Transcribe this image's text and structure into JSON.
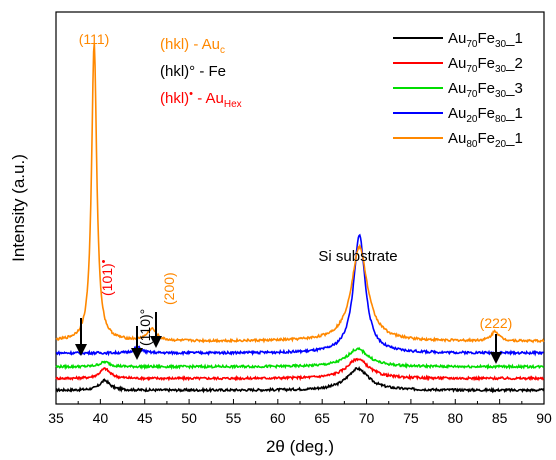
{
  "chart_data": {
    "type": "line",
    "xlabel": "2θ (deg.)",
    "ylabel": "Intensity (a.u.)",
    "xlim": [
      35,
      90
    ],
    "xticks": [
      35,
      40,
      45,
      50,
      55,
      60,
      65,
      70,
      75,
      80,
      85,
      90
    ],
    "y_tick_labels": "none",
    "ylim": [
      0,
      100
    ],
    "legend_position": "top-right",
    "series": [
      {
        "name_main": "Au",
        "name_sub1": "70",
        "name_mid": "Fe",
        "name_sub2": "30",
        "name_tail": "_1",
        "color": "#000000",
        "baseline": 3.5,
        "peaks": [
          {
            "x": 40.5,
            "h": 2.5,
            "w": 0.7
          },
          {
            "x": 69.0,
            "h": 5.5,
            "w": 1.5
          }
        ]
      },
      {
        "name_main": "Au",
        "name_sub1": "70",
        "name_mid": "Fe",
        "name_sub2": "30",
        "name_tail": "_2",
        "color": "#ff0000",
        "baseline": 6.5,
        "peaks": [
          {
            "x": 40.5,
            "h": 2.5,
            "w": 0.7
          },
          {
            "x": 69.0,
            "h": 5.0,
            "w": 1.5
          }
        ]
      },
      {
        "name_main": "Au",
        "name_sub1": "70",
        "name_mid": "Fe",
        "name_sub2": "30",
        "name_tail": "_3",
        "color": "#00dd00",
        "baseline": 9.5,
        "peaks": [
          {
            "x": 40.5,
            "h": 1.2,
            "w": 0.7
          },
          {
            "x": 69.0,
            "h": 4.5,
            "w": 1.5
          }
        ]
      },
      {
        "name_main": "Au",
        "name_sub1": "20",
        "name_mid": "Fe",
        "name_sub2": "80",
        "name_tail": "_1",
        "color": "#0000ff",
        "baseline": 13.0,
        "peaks": [
          {
            "x": 44.2,
            "h": 1.5,
            "w": 0.5
          },
          {
            "x": 69.2,
            "h": 30.0,
            "w": 0.8
          }
        ]
      },
      {
        "name_main": "Au",
        "name_sub1": "80",
        "name_mid": "Fe",
        "name_sub2": "20",
        "name_tail": "_1",
        "color": "#ff8800",
        "baseline": 16.0,
        "peaks": [
          {
            "x": 39.3,
            "h": 76.0,
            "w": 0.35
          },
          {
            "x": 45.8,
            "h": 3.0,
            "w": 0.6
          },
          {
            "x": 69.2,
            "h": 24.0,
            "w": 1.1
          },
          {
            "x": 84.5,
            "h": 2.5,
            "w": 0.5
          }
        ]
      }
    ],
    "annotations": {
      "key_au": {
        "text": "(hkl) - Au",
        "sub": "c",
        "color": "#ff8800"
      },
      "key_fe": {
        "text": "(hkl)° - Fe",
        "color": "#000000"
      },
      "key_hex": {
        "text_pre": "(hkl)",
        "dot": "•",
        "text_post": " - Au",
        "sub": "Hex",
        "color": "#ff0000"
      },
      "peak_111": {
        "text": "(111)",
        "x": 39.3,
        "color": "#ff8800"
      },
      "peak_101": {
        "text_pre": "(101)",
        "dot": "•",
        "x": 40.5,
        "color": "#ff0000"
      },
      "peak_110": {
        "text": "(110)°",
        "x": 44.2,
        "color": "#000000"
      },
      "peak_200": {
        "text": "(200)",
        "x": 45.8,
        "color": "#ff8800"
      },
      "si_substrate": {
        "text": "Si substrate",
        "x": 69.2,
        "color": "#000000"
      },
      "peak_222": {
        "text": "(222)",
        "x": 84.5,
        "color": "#ff8800"
      }
    }
  }
}
